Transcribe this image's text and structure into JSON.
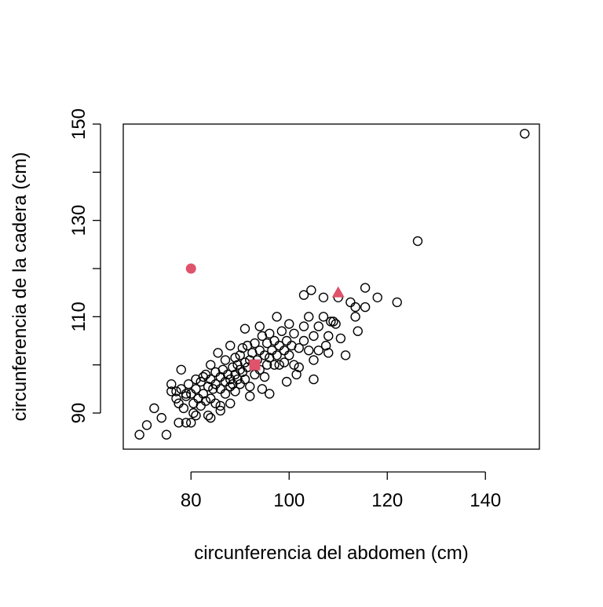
{
  "chart_data": {
    "type": "scatter",
    "xlabel": "circunferencia del abdomen (cm)",
    "ylabel": "circunferencia de la cadera (cm)",
    "xlim": [
      66.2,
      151
    ],
    "ylim": [
      82.5,
      150
    ],
    "xticks": [
      80,
      100,
      120,
      140
    ],
    "yticks": [
      90,
      110,
      130,
      150
    ],
    "yticks_unlabeled": [
      100,
      120,
      140
    ],
    "color": "#000000",
    "points": {
      "x": [
        148,
        126.2,
        122,
        118,
        115.5,
        113.5,
        114,
        115.5,
        111.5,
        110.5,
        108,
        105,
        109,
        69.5,
        71,
        72.5,
        75,
        74,
        77.5,
        79,
        78,
        91,
        94,
        97.5,
        103,
        104.5,
        107,
        110,
        112.5,
        113.5,
        76,
        76,
        77,
        77.5,
        78,
        78.5,
        79,
        79.5,
        80,
        80.5,
        80.5,
        81,
        81,
        81.5,
        82,
        82,
        82.5,
        83,
        83,
        83.5,
        83.5,
        84,
        84,
        84,
        84.5,
        85,
        85,
        85,
        85.5,
        86,
        86,
        86,
        86.5,
        87,
        87,
        87,
        87.5,
        88,
        88,
        88,
        88.5,
        88.5,
        89,
        89,
        89,
        89.5,
        89.5,
        90,
        90,
        90,
        90.5,
        90.5,
        91,
        91,
        91.5,
        91.5,
        92,
        92,
        92.5,
        93,
        93,
        93.5,
        94,
        94,
        94.5,
        94.5,
        95,
        95,
        95.5,
        95.5,
        96,
        96,
        96.5,
        97,
        97,
        97.5,
        98,
        98,
        98.5,
        99,
        99,
        99.5,
        100,
        100,
        100.5,
        101,
        101,
        101.5,
        102,
        102,
        103,
        103,
        104,
        104,
        105,
        105,
        106,
        106,
        107,
        107.5,
        108,
        108.5,
        109.5,
        99.5,
        96,
        92,
        88,
        86,
        84,
        81,
        80,
        82.5,
        79,
        77
      ],
      "y": [
        148,
        125.7,
        113,
        114,
        116,
        110,
        107,
        112,
        102,
        105.5,
        102.5,
        97,
        109,
        85.5,
        87.5,
        91,
        85.5,
        89,
        88,
        88,
        99,
        107.5,
        108,
        110,
        114.5,
        115.5,
        114,
        114,
        113,
        112,
        96,
        94.5,
        93,
        92,
        95,
        91,
        93.5,
        96,
        94,
        92,
        90,
        97,
        95,
        93,
        96.5,
        91.5,
        94,
        98,
        92.5,
        89.5,
        95.5,
        100,
        97,
        93,
        95,
        98.5,
        96,
        92,
        102.5,
        97.5,
        95,
        90.5,
        99,
        96.5,
        94,
        101,
        98,
        97,
        95.5,
        104,
        99.5,
        96,
        101.5,
        98,
        94.5,
        100,
        97,
        102,
        99,
        96,
        103.5,
        98.5,
        100.5,
        97,
        104,
        99.5,
        101,
        95.5,
        102.5,
        104.5,
        98,
        101,
        103,
        99,
        106,
        95,
        102,
        97.5,
        104.5,
        100,
        106.5,
        101.5,
        103,
        105,
        100,
        102,
        104,
        100,
        107,
        103,
        100.5,
        105,
        108.5,
        102,
        104,
        106.5,
        100,
        98,
        103.5,
        99.5,
        105,
        108,
        103,
        110,
        106,
        101,
        108,
        103,
        110,
        104,
        106,
        109,
        108.5,
        96.5,
        94,
        93.5,
        92,
        91.5,
        89,
        89.5,
        88,
        97.5,
        94,
        94.5
      ]
    },
    "highlights": [
      {
        "x": 80,
        "y": 120,
        "shape": "circle",
        "color": "#DF536B"
      },
      {
        "x": 93,
        "y": 100,
        "shape": "square",
        "color": "#DF536B"
      },
      {
        "x": 110,
        "y": 115,
        "shape": "triangle",
        "color": "#DF536B"
      }
    ]
  }
}
